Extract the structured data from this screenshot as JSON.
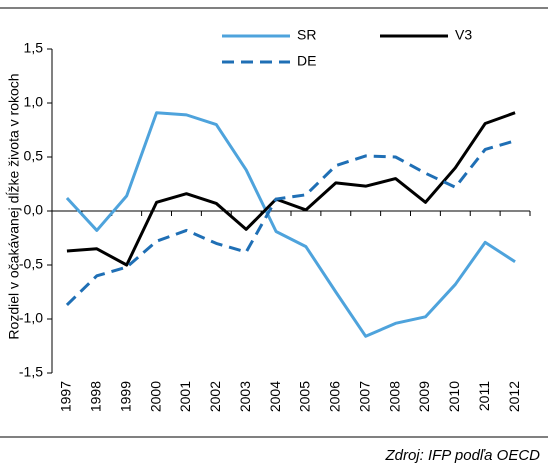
{
  "chart_data": {
    "type": "line",
    "ylabel": "Rozdiel v očakávanej dĺžke života v rokoch",
    "source": "Zdroj: IFP podľa OECD",
    "categories": [
      "1997",
      "1998",
      "1999",
      "2000",
      "2001",
      "2002",
      "2003",
      "2004",
      "2005",
      "2006",
      "2007",
      "2008",
      "2009",
      "2010",
      "2011",
      "2012"
    ],
    "series": [
      {
        "name": "SR",
        "color": "#4ea3dc",
        "dashed": false,
        "values": [
          0.12,
          -0.18,
          0.14,
          0.91,
          0.89,
          0.8,
          0.38,
          -0.19,
          -0.33,
          -0.75,
          -1.16,
          -1.04,
          -0.98,
          -0.68,
          -0.29,
          -0.47
        ]
      },
      {
        "name": "V3",
        "color": "#000000",
        "dashed": false,
        "values": [
          -0.37,
          -0.35,
          -0.5,
          0.08,
          0.16,
          0.07,
          -0.17,
          0.11,
          0.01,
          0.26,
          0.23,
          0.3,
          0.08,
          0.4,
          0.81,
          0.91
        ]
      },
      {
        "name": "DE",
        "color": "#1f6fb5",
        "dashed": true,
        "values": [
          -0.87,
          -0.6,
          -0.52,
          -0.28,
          -0.18,
          -0.3,
          -0.38,
          0.11,
          0.15,
          0.42,
          0.51,
          0.5,
          0.35,
          0.22,
          0.57,
          0.65
        ]
      }
    ],
    "ylim": [
      -1.5,
      1.5
    ],
    "yticks": [
      {
        "value": -1.5,
        "label": "-1,5"
      },
      {
        "value": -1.0,
        "label": "-1,0"
      },
      {
        "value": -0.5,
        "label": "-0,5"
      },
      {
        "value": 0,
        "label": "0,0"
      },
      {
        "value": 0.5,
        "label": "0,5"
      },
      {
        "value": 1.0,
        "label": "1,0"
      },
      {
        "value": 1.5,
        "label": "1,5"
      }
    ]
  }
}
